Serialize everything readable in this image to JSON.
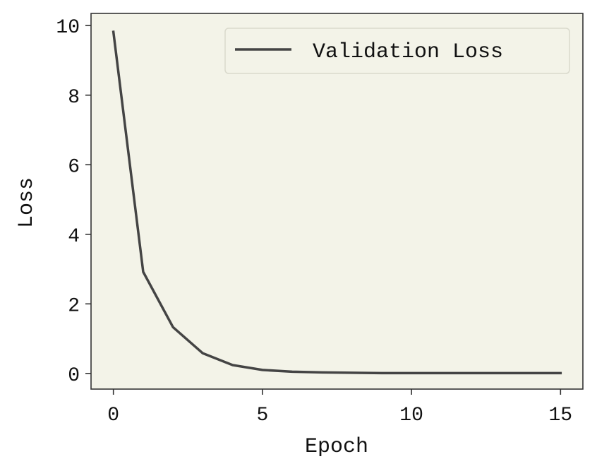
{
  "chart_data": {
    "type": "line",
    "xlabel": "Epoch",
    "ylabel": "Loss",
    "xlim": [
      -0.75,
      15.75
    ],
    "ylim": [
      -0.45,
      10.35
    ],
    "xticks": [
      0,
      5,
      10,
      15
    ],
    "xtick_labels": [
      "0",
      "5",
      "10",
      "15"
    ],
    "yticks": [
      0,
      2,
      4,
      6,
      8,
      10
    ],
    "ytick_labels": [
      "0",
      "2",
      "4",
      "6",
      "8",
      "10"
    ],
    "grid": false,
    "legend_position": "top-right",
    "colors": {
      "line": "#444444",
      "plot_bg": "#f3f3e8",
      "frame": "#333333",
      "legend_border": "#d9d9cc"
    },
    "series": [
      {
        "name": "Validation Loss",
        "x": [
          0,
          1,
          2,
          3,
          4,
          5,
          6,
          7,
          8,
          9,
          10,
          11,
          12,
          13,
          14,
          15
        ],
        "y": [
          9.82,
          2.92,
          1.33,
          0.58,
          0.24,
          0.1,
          0.05,
          0.03,
          0.02,
          0.01,
          0.01,
          0.01,
          0.01,
          0.01,
          0.01,
          0.01
        ]
      }
    ]
  }
}
